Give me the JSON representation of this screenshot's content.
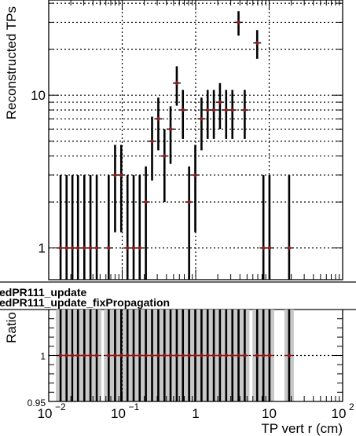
{
  "chart_data": [
    {
      "type": "scatter",
      "panel": "main",
      "ylabel": "Reconstructed TPs",
      "yscale": "log",
      "xscale": "log",
      "xlim": [
        0.01,
        100
      ],
      "ylim": [
        0.62,
        42
      ],
      "grid": true,
      "y_tick_labels": [
        "1",
        "10"
      ],
      "series": [
        {
          "x": [
            0.0145,
            0.0175,
            0.021,
            0.025,
            0.0305,
            0.037,
            0.045,
            0.0655,
            0.08,
            0.097,
            0.118,
            0.143,
            0.173,
            0.21,
            0.255,
            0.31,
            0.376,
            0.455,
            0.553,
            0.67,
            0.814,
            0.988,
            1.2,
            1.455,
            1.766,
            2.14,
            2.6,
            3.16,
            3.83,
            4.65,
            6.87,
            8.35,
            10.1,
            18.7
          ],
          "y": [
            1,
            1,
            1,
            1,
            1,
            1,
            1,
            1,
            3,
            3,
            1,
            1,
            1,
            2,
            5,
            7,
            4,
            6,
            12,
            8,
            2,
            3,
            7,
            8,
            8,
            9,
            8,
            8,
            30,
            8,
            22,
            1,
            1,
            1
          ]
        }
      ]
    },
    {
      "type": "scatter",
      "panel": "ratio",
      "ylabel": "Ratio",
      "xlabel": "TP vert r (cm)",
      "xscale": "log",
      "xlim": [
        0.01,
        100
      ],
      "ylim": [
        0.95,
        1.05
      ],
      "grid": true,
      "x_tick_labels": [
        "10",
        "10",
        "1",
        "10",
        "10"
      ],
      "x_tick_exponents": [
        "−2",
        "−1",
        "",
        "",
        "2"
      ],
      "y_tick_labels": [
        "0.95",
        "1"
      ],
      "legend_entries": [
        "edPR111_update",
        "edPR111_update_fixPropagation"
      ],
      "series": [
        {
          "x": [
            0.0145,
            0.0175,
            0.021,
            0.025,
            0.0305,
            0.037,
            0.045,
            0.0655,
            0.08,
            0.097,
            0.118,
            0.143,
            0.173,
            0.21,
            0.255,
            0.31,
            0.376,
            0.455,
            0.553,
            0.67,
            0.814,
            0.988,
            1.2,
            1.455,
            1.766,
            2.14,
            2.6,
            3.16,
            3.83,
            4.65,
            6.87,
            8.35,
            10.1,
            18.7
          ],
          "y": [
            1,
            1,
            1,
            1,
            1,
            1,
            1,
            1,
            1,
            1,
            1,
            1,
            1,
            1,
            1,
            1,
            1,
            1,
            1,
            1,
            1,
            1,
            1,
            1,
            1,
            1,
            1,
            1,
            1,
            1,
            1,
            1,
            1,
            1
          ]
        }
      ]
    }
  ]
}
